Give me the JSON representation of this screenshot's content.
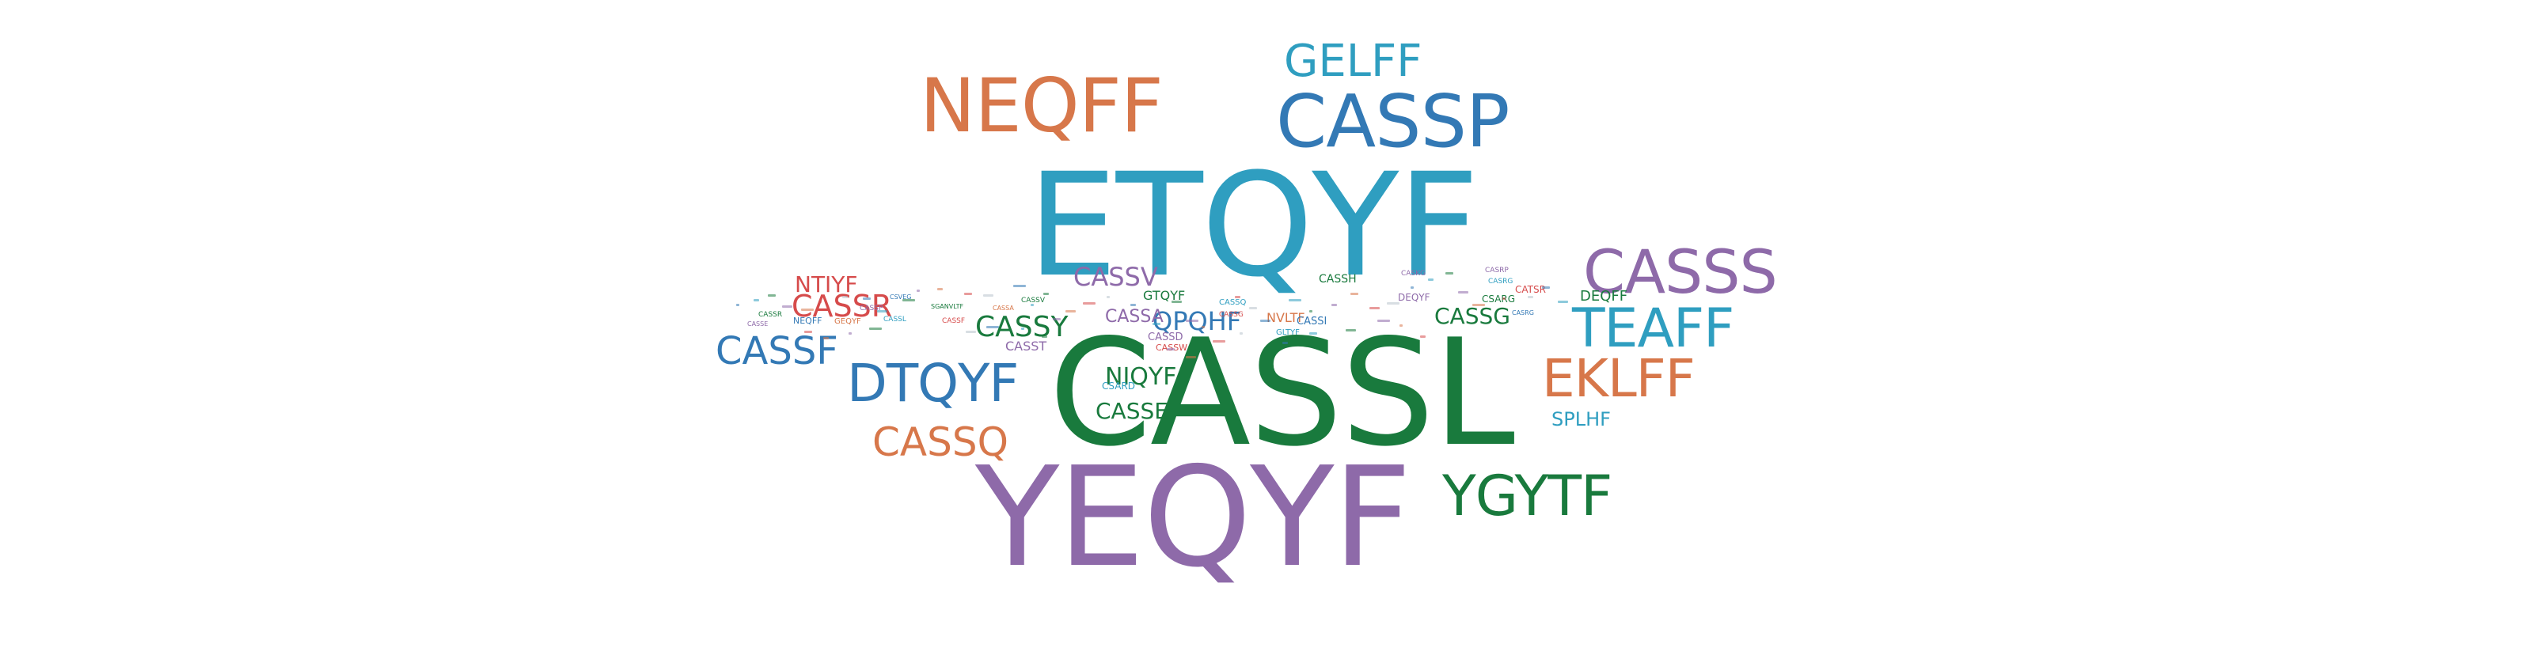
{
  "cloud": {
    "words": [
      {
        "text": "CASSL",
        "color": "#197a3d"
      },
      {
        "text": "ETQYF",
        "color": "#2f9ec0"
      },
      {
        "text": "YEQYF",
        "color": "#8e6aa9"
      },
      {
        "text": "CASSP",
        "color": "#3379b5"
      },
      {
        "text": "NEQFF",
        "color": "#d7774a"
      },
      {
        "text": "GELFF",
        "color": "#2f9ec0"
      },
      {
        "text": "CASSS",
        "color": "#8e6aa9"
      },
      {
        "text": "TEAFF",
        "color": "#2f9ec0"
      },
      {
        "text": "EKLFF",
        "color": "#d7774a"
      },
      {
        "text": "YGYTF",
        "color": "#197a3d"
      },
      {
        "text": "DTQYF",
        "color": "#3379b5"
      },
      {
        "text": "CASSF",
        "color": "#3379b5"
      },
      {
        "text": "CASSQ",
        "color": "#d7774a"
      },
      {
        "text": "CASSR",
        "color": "#d64b4b"
      },
      {
        "text": "NTIYF",
        "color": "#d64b4b"
      },
      {
        "text": "CASSY",
        "color": "#197a3d"
      },
      {
        "text": "CASSV",
        "color": "#8e6aa9"
      },
      {
        "text": "NIQYF",
        "color": "#197a3d"
      },
      {
        "text": "CASSE",
        "color": "#197a3d"
      },
      {
        "text": "QPQHF",
        "color": "#3379b5"
      },
      {
        "text": "CASSA",
        "color": "#8e6aa9"
      },
      {
        "text": "CASSG",
        "color": "#197a3d"
      },
      {
        "text": "SPLHF",
        "color": "#2f9ec0"
      },
      {
        "text": "DEQFF",
        "color": "#197a3d"
      },
      {
        "text": "CASST",
        "color": "#8e6aa9"
      },
      {
        "text": "CSARD",
        "color": "#2f9ec0"
      },
      {
        "text": "CASSW",
        "color": "#d64b4b"
      },
      {
        "text": "CASSD",
        "color": "#8e6aa9"
      },
      {
        "text": "GTQYF",
        "color": "#197a3d"
      },
      {
        "text": "NVLTF",
        "color": "#d7774a"
      },
      {
        "text": "CASSI",
        "color": "#3379b5"
      },
      {
        "text": "GLTYF",
        "color": "#2f9ec0"
      },
      {
        "text": "CASSH",
        "color": "#197a3d"
      },
      {
        "text": "DEQYF",
        "color": "#8e6aa9"
      },
      {
        "text": "CSARG",
        "color": "#197a3d"
      },
      {
        "text": "CATSR",
        "color": "#d64b4b"
      },
      {
        "text": "CASRP",
        "color": "#8e6aa9"
      },
      {
        "text": "CASRG",
        "color": "#2f9ec0"
      },
      {
        "text": "CASRG",
        "color": "#3379b5"
      },
      {
        "text": "CASKG",
        "color": "#8e6aa9"
      },
      {
        "text": "NEQFF",
        "color": "#3379b5"
      },
      {
        "text": "GEQYF",
        "color": "#d7774a"
      },
      {
        "text": "CASSP",
        "color": "#8e6aa9"
      },
      {
        "text": "SGANVLTF",
        "color": "#197a3d"
      },
      {
        "text": "CSVEG",
        "color": "#3379b5"
      },
      {
        "text": "CASSF",
        "color": "#d64b4b"
      },
      {
        "text": "CASSV",
        "color": "#197a3d"
      },
      {
        "text": "CASSL",
        "color": "#2f9ec0"
      },
      {
        "text": "CASSA",
        "color": "#d7774a"
      },
      {
        "text": "CASSQ",
        "color": "#2f9ec0"
      },
      {
        "text": "CASSG",
        "color": "#d64b4b"
      },
      {
        "text": "CASSE",
        "color": "#8e6aa9"
      },
      {
        "text": "CASSR",
        "color": "#197a3d"
      }
    ]
  }
}
